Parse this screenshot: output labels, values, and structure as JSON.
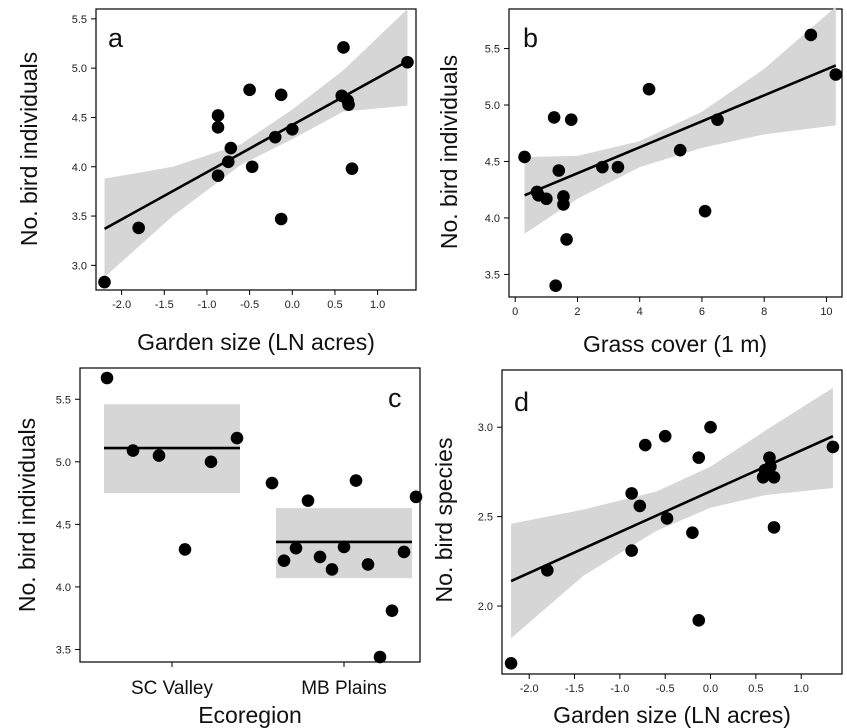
{
  "chart_data": [
    {
      "panel": "a",
      "type": "scatter",
      "xlabel": "Garden size (LN acres)",
      "ylabel": "No. bird individuals",
      "xlim": [
        -2.3,
        1.45
      ],
      "ylim": [
        2.75,
        5.6
      ],
      "xticks": [
        -2.0,
        -1.5,
        -1.0,
        -0.5,
        0.0,
        0.5,
        1.0
      ],
      "yticks": [
        3.0,
        3.5,
        4.0,
        4.5,
        5.0,
        5.5
      ],
      "points": [
        [
          -2.2,
          2.83
        ],
        [
          -1.8,
          3.38
        ],
        [
          -0.87,
          4.52
        ],
        [
          -0.87,
          4.4
        ],
        [
          -0.87,
          3.91
        ],
        [
          -0.75,
          4.05
        ],
        [
          -0.72,
          4.19
        ],
        [
          -0.5,
          4.78
        ],
        [
          -0.47,
          4.0
        ],
        [
          -0.2,
          4.3
        ],
        [
          -0.13,
          4.73
        ],
        [
          -0.13,
          3.47
        ],
        [
          0.0,
          4.38
        ],
        [
          0.58,
          4.72
        ],
        [
          0.6,
          5.21
        ],
        [
          0.65,
          4.67
        ],
        [
          0.66,
          4.63
        ],
        [
          0.7,
          3.98
        ],
        [
          1.35,
          5.06
        ]
      ],
      "fit": {
        "x": [
          -2.2,
          1.35
        ],
        "y": [
          3.37,
          5.07
        ]
      },
      "band": {
        "x": [
          -2.2,
          -1.4,
          -0.6,
          0.0,
          0.6,
          1.35
        ],
        "lower": [
          2.88,
          3.5,
          4.02,
          4.28,
          4.56,
          4.62
        ],
        "upper": [
          3.88,
          4.0,
          4.23,
          4.58,
          4.98,
          5.6
        ]
      }
    },
    {
      "panel": "b",
      "type": "scatter",
      "xlabel": "Grass cover (1 m)",
      "ylabel": "No. bird individuals",
      "xlim": [
        -0.2,
        10.5
      ],
      "ylim": [
        3.3,
        5.85
      ],
      "xticks": [
        0,
        2,
        4,
        6,
        8,
        10
      ],
      "yticks": [
        3.5,
        4.0,
        4.5,
        5.0,
        5.5
      ],
      "points": [
        [
          0.3,
          4.54
        ],
        [
          0.7,
          4.23
        ],
        [
          0.75,
          4.2
        ],
        [
          1.0,
          4.17
        ],
        [
          1.25,
          4.89
        ],
        [
          1.3,
          3.4
        ],
        [
          1.4,
          4.42
        ],
        [
          1.55,
          4.12
        ],
        [
          1.55,
          4.19
        ],
        [
          1.65,
          3.81
        ],
        [
          1.8,
          4.87
        ],
        [
          2.8,
          4.45
        ],
        [
          3.3,
          4.45
        ],
        [
          4.3,
          5.14
        ],
        [
          5.3,
          4.6
        ],
        [
          6.1,
          4.06
        ],
        [
          6.5,
          4.87
        ],
        [
          9.5,
          5.62
        ],
        [
          10.3,
          5.27
        ]
      ],
      "fit": {
        "x": [
          0.3,
          10.3
        ],
        "y": [
          4.2,
          5.35
        ]
      },
      "band": {
        "x": [
          0.3,
          2.0,
          4.0,
          6.0,
          8.0,
          10.3
        ],
        "lower": [
          3.86,
          4.17,
          4.45,
          4.62,
          4.74,
          4.82
        ],
        "upper": [
          4.54,
          4.55,
          4.68,
          4.94,
          5.32,
          5.87
        ]
      }
    },
    {
      "panel": "c",
      "type": "scatter",
      "xlabel": "Ecoregion",
      "ylabel": "No. bird individuals",
      "categories": [
        "SC Valley",
        "MB Plains"
      ],
      "ylim": [
        3.4,
        5.75
      ],
      "yticks": [
        3.5,
        4.0,
        4.5,
        5.0,
        5.5
      ],
      "groups": [
        {
          "category": "SC Valley",
          "mean": 5.11,
          "lower": 4.75,
          "upper": 5.46,
          "values": [
            5.67,
            5.09,
            5.05,
            4.3,
            5.0,
            5.19
          ]
        },
        {
          "category": "MB Plains",
          "mean": 4.36,
          "lower": 4.07,
          "upper": 4.63,
          "values": [
            4.83,
            4.21,
            4.31,
            4.69,
            4.24,
            4.14,
            4.32,
            4.85,
            4.18,
            3.44,
            3.81,
            4.28,
            4.72
          ]
        }
      ]
    },
    {
      "panel": "d",
      "type": "scatter",
      "xlabel": "Garden size (LN acres)",
      "ylabel": "No. bird species",
      "xlim": [
        -2.3,
        1.45
      ],
      "ylim": [
        1.62,
        3.32
      ],
      "xticks": [
        -2.0,
        -1.5,
        -1.0,
        -0.5,
        0.0,
        0.5,
        1.0
      ],
      "yticks": [
        2.0,
        2.5,
        3.0
      ],
      "points": [
        [
          -2.2,
          1.68
        ],
        [
          -1.8,
          2.2
        ],
        [
          -0.87,
          2.63
        ],
        [
          -0.87,
          2.31
        ],
        [
          -0.78,
          2.56
        ],
        [
          -0.72,
          2.9
        ],
        [
          -0.5,
          2.95
        ],
        [
          -0.48,
          2.49
        ],
        [
          -0.2,
          2.41
        ],
        [
          -0.13,
          2.83
        ],
        [
          -0.13,
          1.92
        ],
        [
          0.0,
          3.0
        ],
        [
          0.58,
          2.72
        ],
        [
          0.6,
          2.76
        ],
        [
          0.65,
          2.83
        ],
        [
          0.66,
          2.78
        ],
        [
          0.7,
          2.72
        ],
        [
          0.7,
          2.44
        ],
        [
          1.35,
          2.89
        ]
      ],
      "fit": {
        "x": [
          -2.2,
          1.35
        ],
        "y": [
          2.14,
          2.95
        ]
      },
      "band": {
        "x": [
          -2.2,
          -1.4,
          -0.6,
          0.0,
          0.6,
          1.35
        ],
        "lower": [
          1.82,
          2.17,
          2.42,
          2.55,
          2.62,
          2.66
        ],
        "upper": [
          2.46,
          2.54,
          2.64,
          2.78,
          2.98,
          3.22
        ]
      }
    }
  ]
}
